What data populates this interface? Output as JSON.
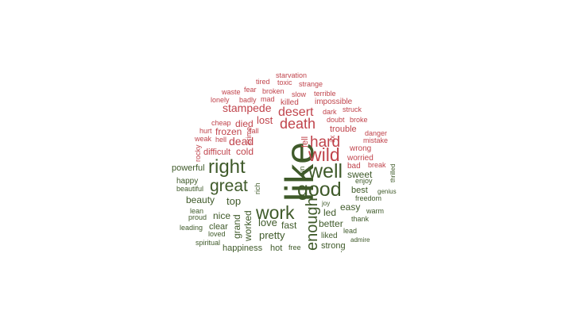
{
  "colors": {
    "negative": "#c0444c",
    "positive": "#3f5a2a"
  },
  "words": [
    {
      "text": "like",
      "sentiment": "positive"
    },
    {
      "text": "good",
      "sentiment": "positive"
    },
    {
      "text": "well",
      "sentiment": "positive"
    },
    {
      "text": "work",
      "sentiment": "positive"
    },
    {
      "text": "right",
      "sentiment": "positive"
    },
    {
      "text": "great",
      "sentiment": "positive"
    },
    {
      "text": "enough",
      "sentiment": "positive"
    },
    {
      "text": "wild",
      "sentiment": "negative"
    },
    {
      "text": "hard",
      "sentiment": "negative"
    },
    {
      "text": "death",
      "sentiment": "negative"
    },
    {
      "text": "desert",
      "sentiment": "negative"
    },
    {
      "text": "stampede",
      "sentiment": "negative"
    },
    {
      "text": "dead",
      "sentiment": "negative"
    },
    {
      "text": "lost",
      "sentiment": "negative"
    },
    {
      "text": "frozen",
      "sentiment": "negative"
    },
    {
      "text": "died",
      "sentiment": "negative"
    },
    {
      "text": "cold",
      "sentiment": "negative"
    },
    {
      "text": "difficult",
      "sentiment": "negative"
    },
    {
      "text": "trouble",
      "sentiment": "negative"
    },
    {
      "text": "fell",
      "sentiment": "negative"
    },
    {
      "text": "doubt",
      "sentiment": "negative"
    },
    {
      "text": "broke",
      "sentiment": "negative"
    },
    {
      "text": "dark",
      "sentiment": "negative"
    },
    {
      "text": "struck",
      "sentiment": "negative"
    },
    {
      "text": "killed",
      "sentiment": "negative"
    },
    {
      "text": "impossible",
      "sentiment": "negative"
    },
    {
      "text": "terrible",
      "sentiment": "negative"
    },
    {
      "text": "slow",
      "sentiment": "negative"
    },
    {
      "text": "broken",
      "sentiment": "negative"
    },
    {
      "text": "toxic",
      "sentiment": "negative"
    },
    {
      "text": "strange",
      "sentiment": "negative"
    },
    {
      "text": "starvation",
      "sentiment": "negative"
    },
    {
      "text": "tired",
      "sentiment": "negative"
    },
    {
      "text": "fear",
      "sentiment": "negative"
    },
    {
      "text": "waste",
      "sentiment": "negative"
    },
    {
      "text": "lonely",
      "sentiment": "negative"
    },
    {
      "text": "badly",
      "sentiment": "negative"
    },
    {
      "text": "mad",
      "sentiment": "negative"
    },
    {
      "text": "cheap",
      "sentiment": "negative"
    },
    {
      "text": "hurt",
      "sentiment": "negative"
    },
    {
      "text": "fall",
      "sentiment": "negative"
    },
    {
      "text": "weak",
      "sentiment": "negative"
    },
    {
      "text": "hell",
      "sentiment": "negative"
    },
    {
      "text": "crime",
      "sentiment": "negative"
    },
    {
      "text": "rocky",
      "sentiment": "negative"
    },
    {
      "text": "danger",
      "sentiment": "negative"
    },
    {
      "text": "mistake",
      "sentiment": "negative"
    },
    {
      "text": "wrong",
      "sentiment": "negative"
    },
    {
      "text": "worried",
      "sentiment": "negative"
    },
    {
      "text": "bad",
      "sentiment": "negative"
    },
    {
      "text": "break",
      "sentiment": "negative"
    },
    {
      "text": "ax",
      "sentiment": "negative"
    },
    {
      "text": "sweet",
      "sentiment": "positive"
    },
    {
      "text": "enjoy",
      "sentiment": "positive"
    },
    {
      "text": "best",
      "sentiment": "positive"
    },
    {
      "text": "freedom",
      "sentiment": "positive"
    },
    {
      "text": "genius",
      "sentiment": "positive"
    },
    {
      "text": "thrilled",
      "sentiment": "positive"
    },
    {
      "text": "fun",
      "sentiment": "positive"
    },
    {
      "text": "easy",
      "sentiment": "positive"
    },
    {
      "text": "led",
      "sentiment": "positive"
    },
    {
      "text": "joy",
      "sentiment": "positive"
    },
    {
      "text": "warm",
      "sentiment": "positive"
    },
    {
      "text": "thank",
      "sentiment": "positive"
    },
    {
      "text": "better",
      "sentiment": "positive"
    },
    {
      "text": "lead",
      "sentiment": "positive"
    },
    {
      "text": "liked",
      "sentiment": "positive"
    },
    {
      "text": "admire",
      "sentiment": "positive"
    },
    {
      "text": "strong",
      "sentiment": "positive"
    },
    {
      "text": "clean",
      "sentiment": "positive"
    },
    {
      "text": "free",
      "sentiment": "positive"
    },
    {
      "text": "hot",
      "sentiment": "positive"
    },
    {
      "text": "happiness",
      "sentiment": "positive"
    },
    {
      "text": "fast",
      "sentiment": "positive"
    },
    {
      "text": "love",
      "sentiment": "positive"
    },
    {
      "text": "pretty",
      "sentiment": "positive"
    },
    {
      "text": "worked",
      "sentiment": "positive"
    },
    {
      "text": "grand",
      "sentiment": "positive"
    },
    {
      "text": "rich",
      "sentiment": "positive"
    },
    {
      "text": "top",
      "sentiment": "positive"
    },
    {
      "text": "nice",
      "sentiment": "positive"
    },
    {
      "text": "clear",
      "sentiment": "positive"
    },
    {
      "text": "beauty",
      "sentiment": "positive"
    },
    {
      "text": "powerful",
      "sentiment": "positive"
    },
    {
      "text": "happy",
      "sentiment": "positive"
    },
    {
      "text": "beautiful",
      "sentiment": "positive"
    },
    {
      "text": "lean",
      "sentiment": "positive"
    },
    {
      "text": "proud",
      "sentiment": "positive"
    },
    {
      "text": "leading",
      "sentiment": "positive"
    },
    {
      "text": "loved",
      "sentiment": "positive"
    },
    {
      "text": "spiritual",
      "sentiment": "positive"
    }
  ]
}
